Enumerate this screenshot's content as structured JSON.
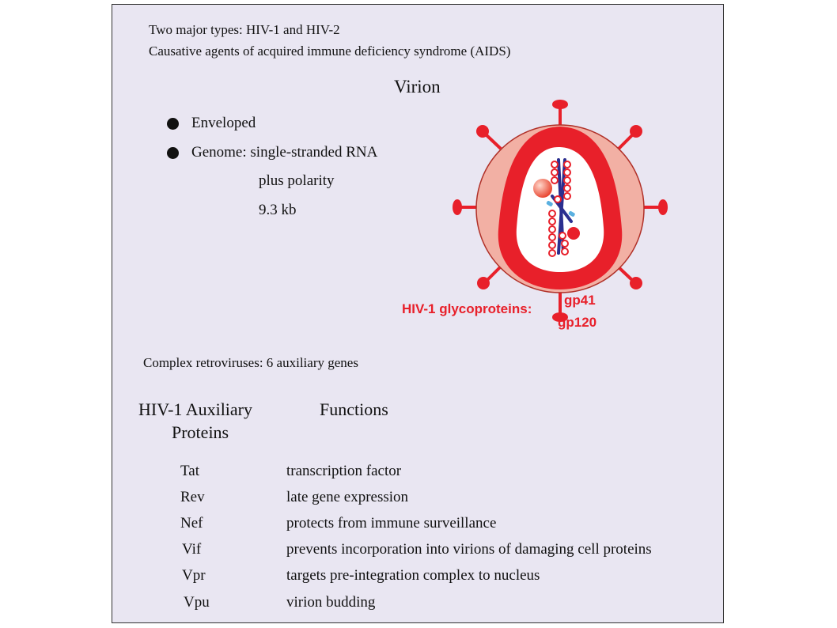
{
  "intro": {
    "line1": "Two major types: HIV-1 and HIV-2",
    "line2": "Causative agents of acquired immune deficiency syndrome (AIDS)"
  },
  "virion": {
    "title": "Virion",
    "bullets": [
      {
        "text": "Enveloped"
      },
      {
        "text": "Genome: single-stranded RNA"
      }
    ],
    "genome_detail": [
      "plus polarity",
      "9.3 kb"
    ]
  },
  "diagram": {
    "glyco_label": "HIV-1 glycoproteins:",
    "gp41": "gp41",
    "gp120": "gp120",
    "colors": {
      "outer_envelope": "#f2b0a4",
      "capsid_ring": "#e8202a",
      "core": "#ffffff",
      "rna": "#2b2f8f",
      "nucleocapsid": "#e8202a",
      "small_protein": "#5ab0e0"
    }
  },
  "retroviruses": {
    "text": "Complex retroviruses: 6 auxiliary genes"
  },
  "table": {
    "headers": {
      "proteins_line1": "HIV-1 Auxiliary",
      "proteins_line2": "Proteins",
      "functions": "Functions"
    },
    "rows": [
      {
        "protein": "Tat",
        "function": "transcription factor"
      },
      {
        "protein": "Rev",
        "function": "late gene expression"
      },
      {
        "protein": "Nef",
        "function": "protects from immune surveillance"
      },
      {
        "protein": "Vif",
        "function": "prevents incorporation into virions of damaging cell proteins"
      },
      {
        "protein": "Vpr",
        "function": "targets pre-integration complex to nucleus"
      },
      {
        "protein": "Vpu",
        "function": "virion budding"
      }
    ]
  }
}
